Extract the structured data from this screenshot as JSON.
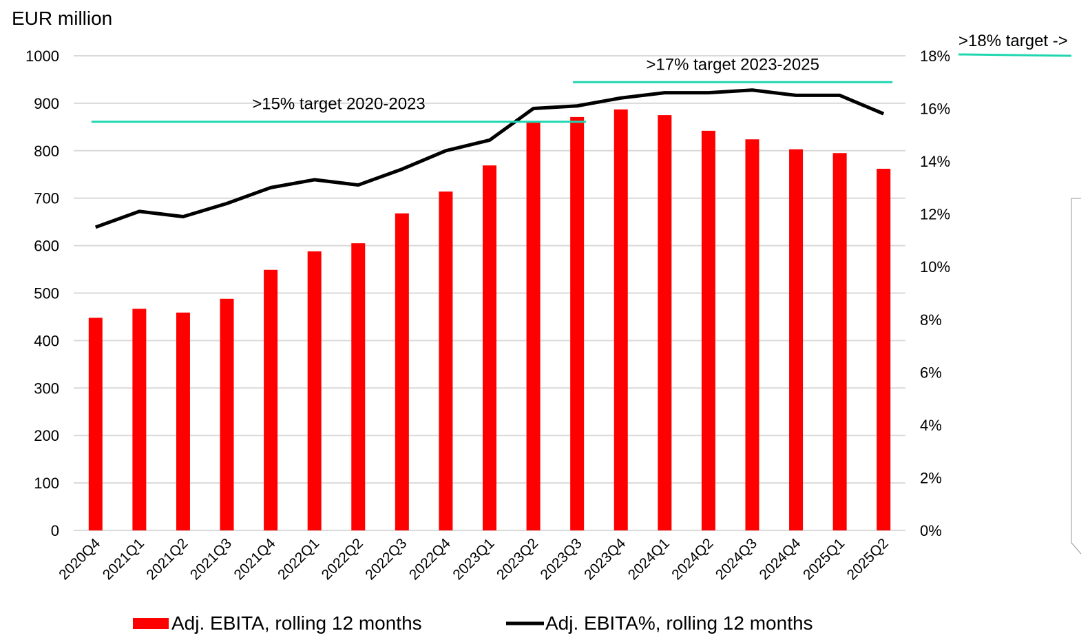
{
  "chart_data": {
    "type": "bar",
    "y_axis_label": "EUR million",
    "categories": [
      "2020Q4",
      "2021Q1",
      "2021Q2",
      "2021Q3",
      "2021Q4",
      "2022Q1",
      "2022Q2",
      "2022Q3",
      "2022Q4",
      "2023Q1",
      "2023Q2",
      "2023Q3",
      "2023Q4",
      "2024Q1",
      "2024Q2",
      "2024Q3",
      "2024Q4",
      "2025Q1",
      "2025Q2"
    ],
    "series": [
      {
        "name": "Adj. EBITA, rolling 12 months",
        "type": "bar",
        "color": "#ff0000",
        "values": [
          448,
          467,
          459,
          488,
          549,
          588,
          605,
          668,
          714,
          769,
          861,
          871,
          887,
          875,
          842,
          824,
          803,
          795,
          762
        ]
      },
      {
        "name": "Adj. EBITA%, rolling 12 months",
        "type": "line",
        "color": "#000000",
        "axis": "y2",
        "values": [
          11.5,
          12.1,
          11.9,
          12.4,
          13.0,
          13.3,
          13.1,
          13.7,
          14.4,
          14.8,
          16.0,
          16.1,
          16.4,
          16.6,
          16.6,
          16.7,
          16.5,
          16.5,
          15.8
        ]
      }
    ],
    "ylim": [
      0,
      1000
    ],
    "yticks": [
      0,
      100,
      200,
      300,
      400,
      500,
      600,
      700,
      800,
      900,
      1000
    ],
    "y2lim": [
      0,
      18
    ],
    "y2ticks": [
      {
        "value": 0,
        "label": "0%"
      },
      {
        "value": 2,
        "label": "2%"
      },
      {
        "value": 4,
        "label": "4%"
      },
      {
        "value": 6,
        "label": "6%"
      },
      {
        "value": 8,
        "label": "8%"
      },
      {
        "value": 10,
        "label": "10%"
      },
      {
        "value": 12,
        "label": "12%"
      },
      {
        "value": 14,
        "label": "14%"
      },
      {
        "value": 16,
        "label": "16%"
      },
      {
        "value": 18,
        "label": "18%"
      }
    ],
    "grid": true,
    "targets": [
      {
        "label": ">15% target 2020-2023",
        "value": 15.5,
        "from": "2020Q4",
        "to": "2023Q3",
        "color": "#1fd6b0"
      },
      {
        "label": ">17% target 2023-2025",
        "value": 17,
        "from": "2023Q3",
        "to": "2025Q2",
        "color": "#1fd6b0"
      }
    ],
    "side_note": ">18% target ->"
  }
}
